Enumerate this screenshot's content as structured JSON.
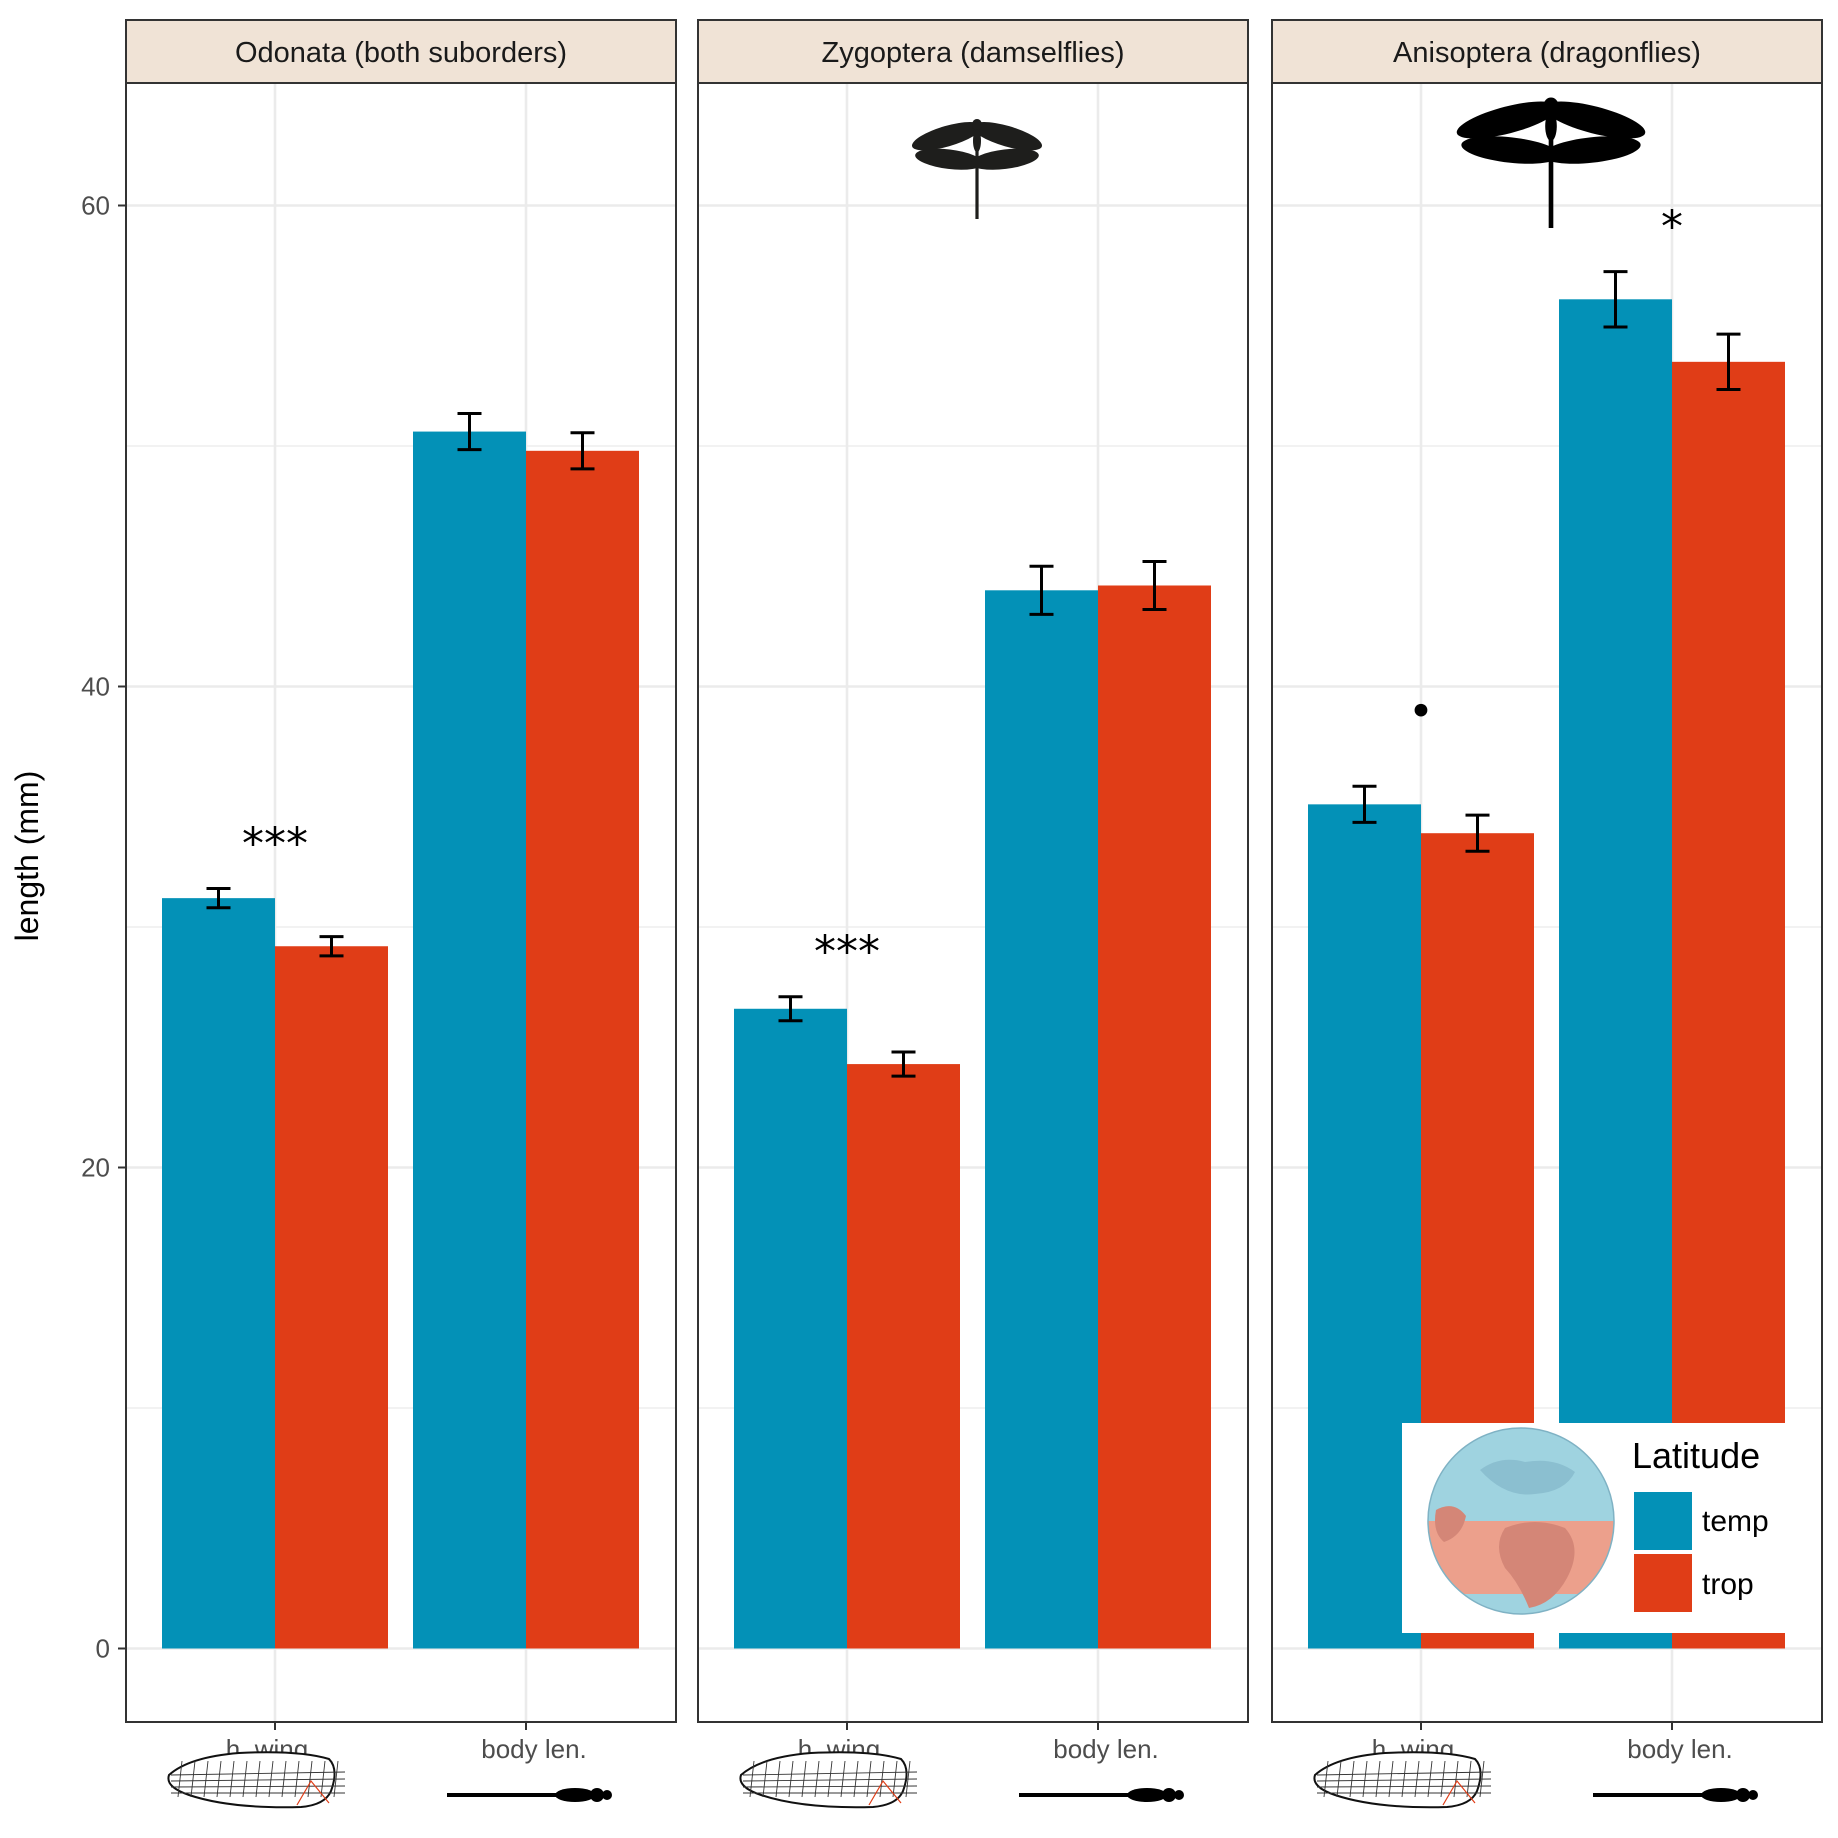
{
  "colors": {
    "temp": "#0391b7",
    "trop": "#e03d17",
    "strip_bg": "#f0e3d6",
    "grid": "#ebebeb"
  },
  "icons": [
    "dragonfly-silhouette-icon",
    "hind-wing-icon",
    "body-silhouette-icon",
    "globe-icon"
  ],
  "chart_data": {
    "type": "bar",
    "ylabel": "length (mm)",
    "ylim": [
      -3,
      67
    ],
    "yticks": [
      0,
      20,
      40,
      60
    ],
    "grid": true,
    "legend_position": "bottom-right",
    "legend": {
      "title": "Latitude",
      "entries": [
        "temp",
        "trop"
      ]
    },
    "categories": [
      "h. wing",
      "body len."
    ],
    "panels": [
      {
        "title": "Odonata (both suborders)",
        "series": [
          {
            "name": "temp",
            "values": [
              31.2,
              50.6
            ],
            "error": [
              0.4,
              0.75
            ]
          },
          {
            "name": "trop",
            "values": [
              29.2,
              49.8
            ],
            "error": [
              0.4,
              0.75
            ]
          }
        ],
        "annotations": [
          {
            "category": "h. wing",
            "text": "***"
          }
        ]
      },
      {
        "title": "Zygoptera (damselflies)",
        "series": [
          {
            "name": "temp",
            "values": [
              26.6,
              44.0
            ],
            "error": [
              0.5,
              1.0
            ]
          },
          {
            "name": "trop",
            "values": [
              24.3,
              44.2
            ],
            "error": [
              0.5,
              1.0
            ]
          }
        ],
        "annotations": [
          {
            "category": "h. wing",
            "text": "***"
          }
        ]
      },
      {
        "title": "Anisoptera (dragonflies)",
        "series": [
          {
            "name": "temp",
            "values": [
              35.1,
              56.1
            ],
            "error": [
              0.75,
              1.15
            ]
          },
          {
            "name": "trop",
            "values": [
              33.9,
              53.5
            ],
            "error": [
              0.75,
              1.15
            ]
          }
        ],
        "annotations": [
          {
            "category": "h. wing",
            "text": "•"
          },
          {
            "category": "body len.",
            "text": "*"
          }
        ]
      }
    ]
  }
}
